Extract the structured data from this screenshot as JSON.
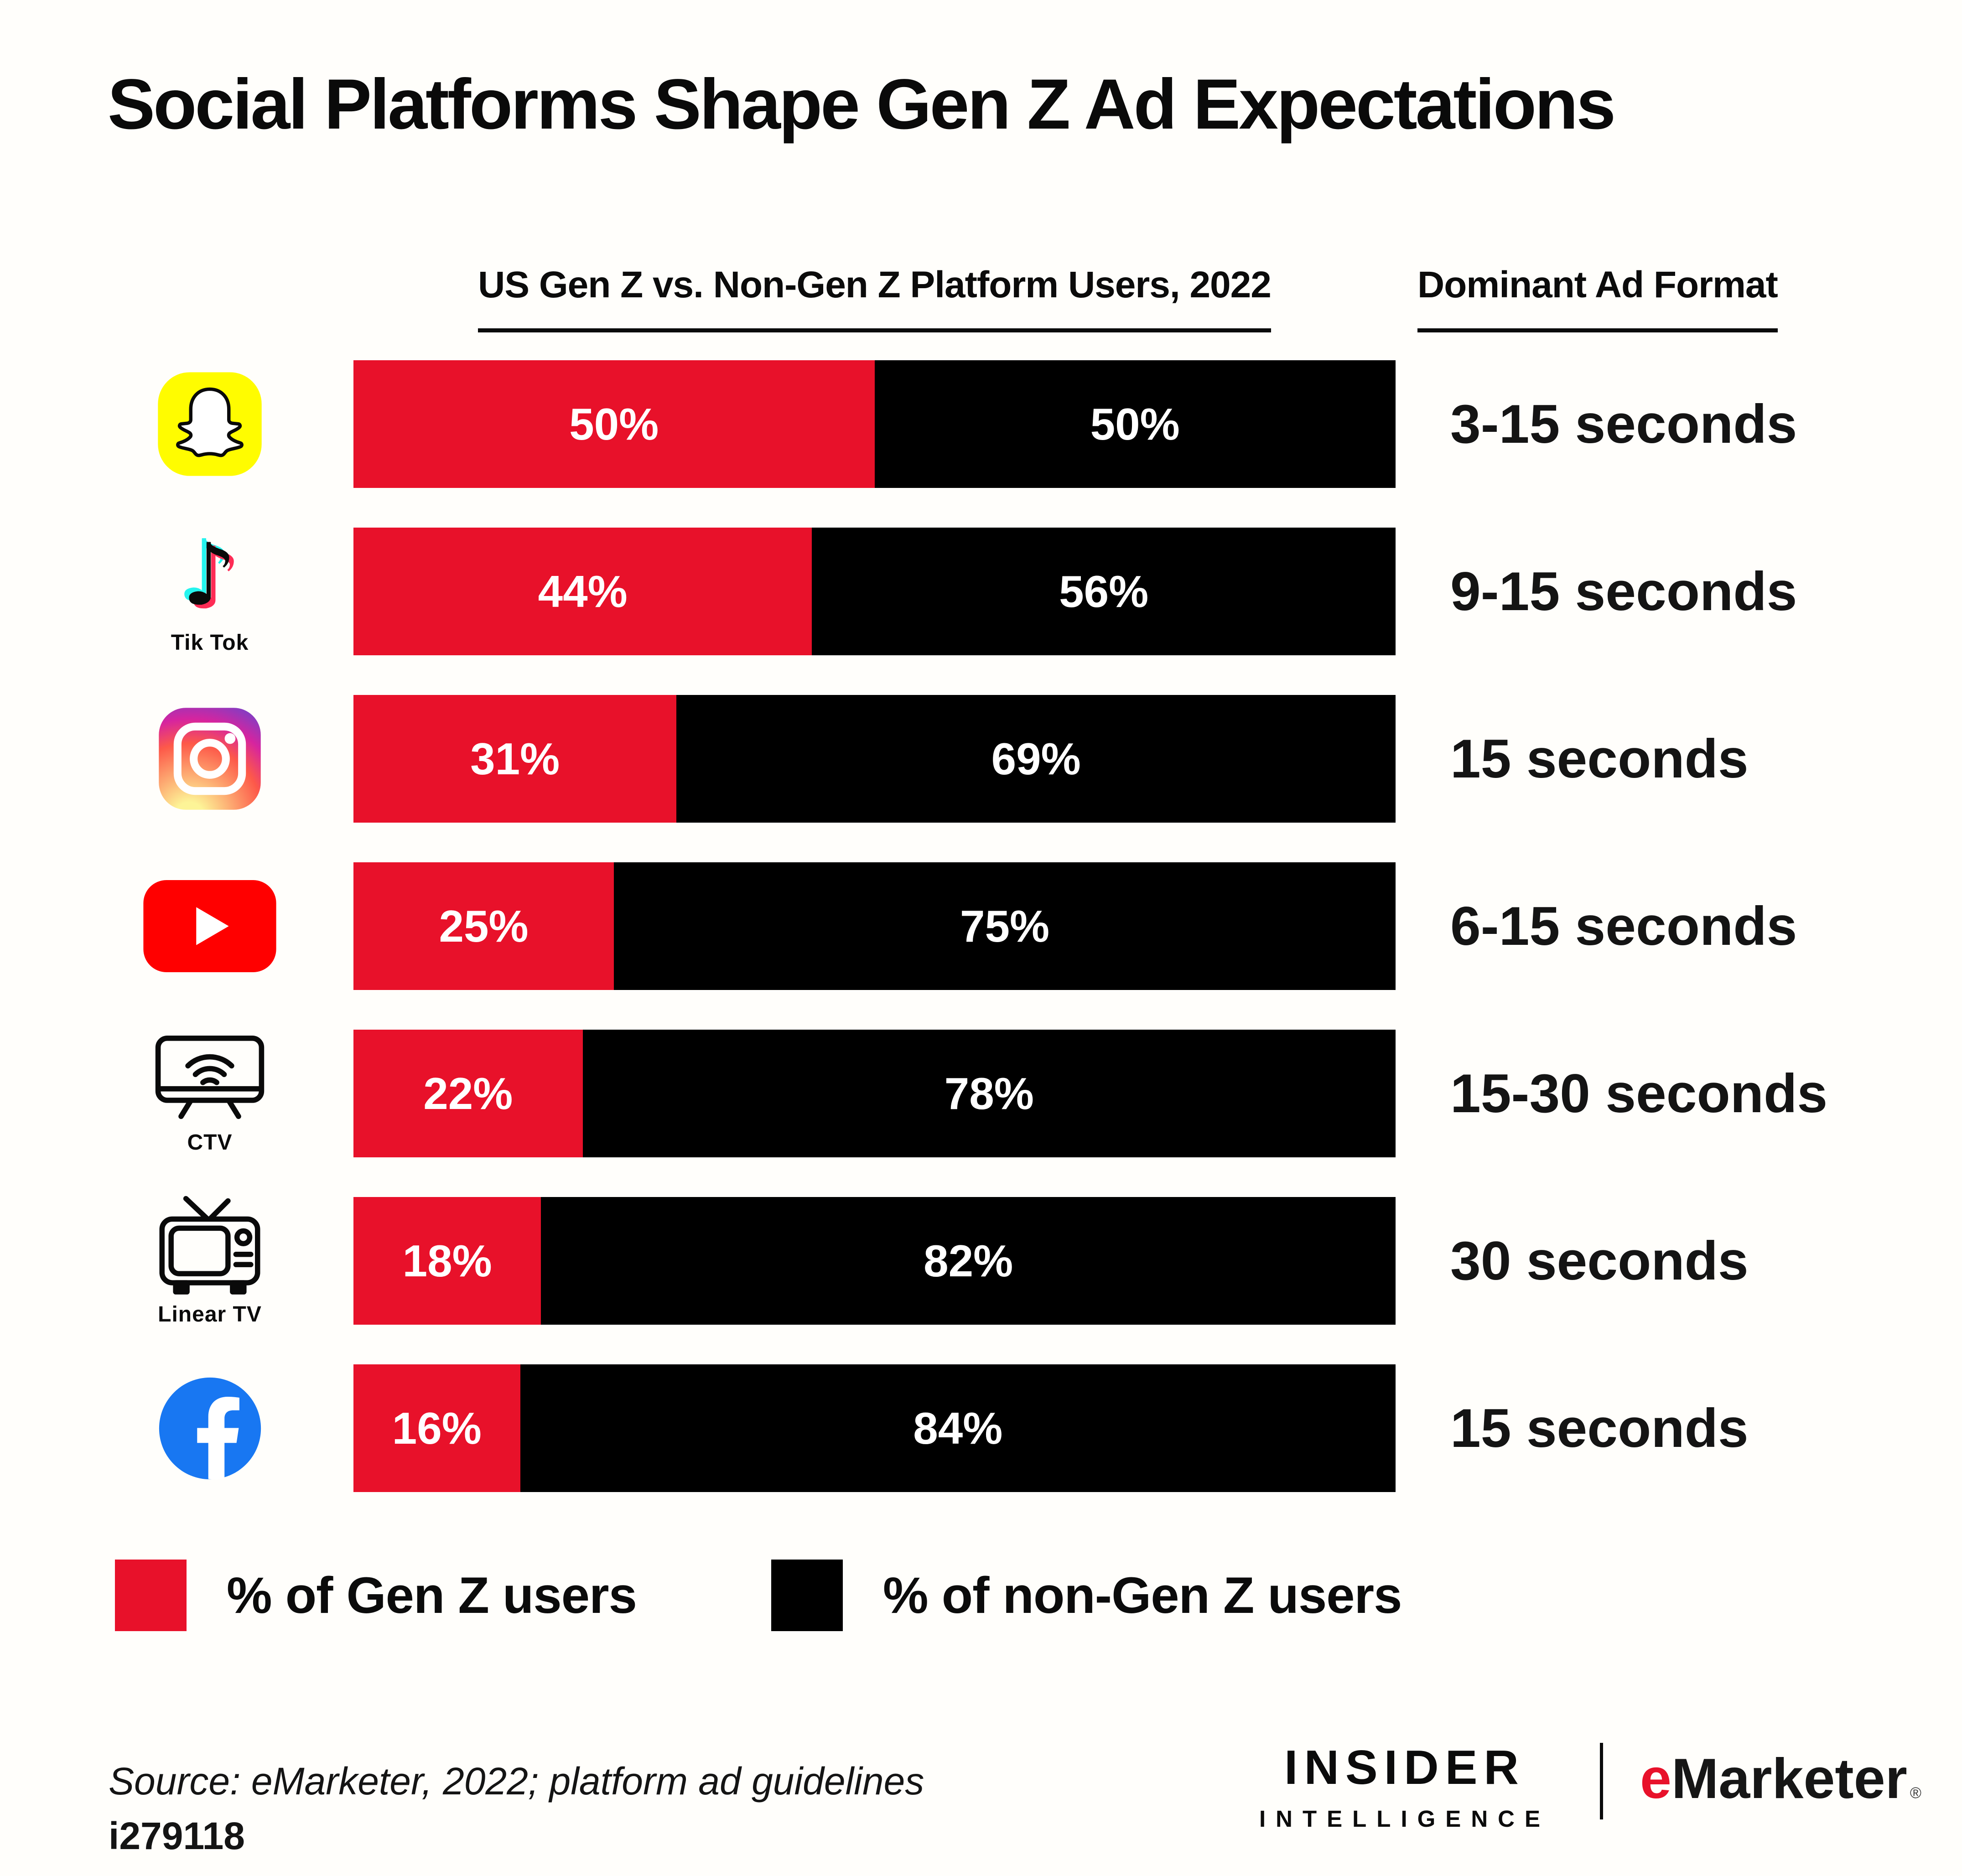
{
  "title": "Social Platforms Shape Gen Z Ad Expectations",
  "headers": {
    "users": "US Gen Z vs. Non-Gen Z Platform Users, 2022",
    "format": "Dominant Ad Format"
  },
  "chart_data": {
    "type": "bar",
    "orientation": "horizontal",
    "stacked": true,
    "categories": [
      "Snapchat",
      "Tik Tok",
      "Instagram",
      "YouTube",
      "CTV",
      "Linear TV",
      "Facebook"
    ],
    "series": [
      {
        "name": "% of Gen Z users",
        "color": "#E8112A",
        "values": [
          50,
          44,
          31,
          25,
          22,
          18,
          16
        ]
      },
      {
        "name": "% of non-Gen Z users",
        "color": "#000000",
        "values": [
          50,
          56,
          69,
          75,
          78,
          82,
          84
        ]
      }
    ],
    "value_suffix": "%",
    "xlim": [
      0,
      100
    ],
    "grid": false,
    "legend_position": "bottom",
    "ad_formats": [
      "3-15 seconds",
      "9-15 seconds",
      "15 seconds",
      "6-15 seconds",
      "15-30 seconds",
      "30 seconds",
      "15 seconds"
    ]
  },
  "rows": [
    {
      "platform": "Snapchat",
      "icon": "snapchat-icon",
      "icon_label": "",
      "format": "3-15 seconds"
    },
    {
      "platform": "Tik Tok",
      "icon": "tiktok-icon",
      "icon_label": "Tik Tok",
      "format": "9-15 seconds"
    },
    {
      "platform": "Instagram",
      "icon": "instagram-icon",
      "icon_label": "",
      "format": "15 seconds"
    },
    {
      "platform": "YouTube",
      "icon": "youtube-icon",
      "icon_label": "",
      "format": "6-15 seconds"
    },
    {
      "platform": "CTV",
      "icon": "ctv-icon",
      "icon_label": "CTV",
      "format": "15-30 seconds"
    },
    {
      "platform": "Linear TV",
      "icon": "linear-tv-icon",
      "icon_label": "Linear TV",
      "format": "30 seconds"
    },
    {
      "platform": "Facebook",
      "icon": "facebook-icon",
      "icon_label": "",
      "format": "15 seconds"
    }
  ],
  "icons": {
    "snapchat_yellow": "#FFFC00",
    "tiktok_cyan": "#25F4EE",
    "tiktok_pink": "#FE2C55",
    "youtube_red": "#FF0000",
    "facebook_blue": "#1877F2",
    "instagram_gradient": [
      "#FDF497",
      "#FD5949",
      "#D6249F",
      "#285AEB"
    ],
    "outline": "#0A0A0A"
  },
  "footer": {
    "source": "Source: eMarketer, 2022; platform ad guidelines",
    "chart_id": "i279118",
    "brand_left_line1": "INSIDER",
    "brand_left_line2": "INTELLIGENCE",
    "brand_right_e": "e",
    "brand_right_rest": "Marketer",
    "registered_mark": "®"
  }
}
